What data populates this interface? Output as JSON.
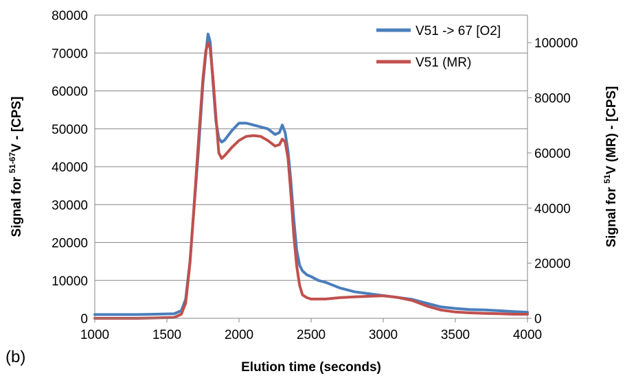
{
  "panel_label": "(b)",
  "chart_data": {
    "type": "line",
    "xlabel": "Elution time (seconds)",
    "ylabel_left": {
      "prefix": "Signal for ",
      "sup": "51-67",
      "suffix": "V - [CPS]"
    },
    "ylabel_right": {
      "prefix": "Signal for ",
      "sup": "51",
      "suffix": "V (MR) - [CPS]"
    },
    "xlim": [
      1000,
      4000
    ],
    "ylim_left": [
      0,
      80000
    ],
    "ylim_right": [
      0,
      110000
    ],
    "x_ticks": [
      "1000",
      "1500",
      "2000",
      "2500",
      "3000",
      "3500",
      "4000"
    ],
    "y_ticks_left": [
      "0",
      "10000",
      "20000",
      "30000",
      "40000",
      "50000",
      "60000",
      "70000",
      "80000"
    ],
    "y_ticks_right": [
      "0",
      "20000",
      "40000",
      "60000",
      "80000",
      "100000"
    ],
    "grid": "horizontal-left",
    "legend_position": "top-right",
    "series": [
      {
        "name": "V51 -> 67 [O2]",
        "axis": "left",
        "color": "#4a7ebb",
        "x": [
          1000,
          1300,
          1550,
          1600,
          1630,
          1660,
          1690,
          1720,
          1750,
          1770,
          1785,
          1800,
          1820,
          1840,
          1860,
          1880,
          1900,
          1950,
          2000,
          2050,
          2100,
          2150,
          2200,
          2250,
          2280,
          2300,
          2320,
          2340,
          2360,
          2380,
          2400,
          2420,
          2440,
          2470,
          2500,
          2550,
          2600,
          2700,
          2800,
          2900,
          3000,
          3100,
          3200,
          3300,
          3400,
          3500,
          3600,
          3700,
          3800,
          3900,
          4000
        ],
        "y": [
          1000,
          1000,
          1200,
          2000,
          5000,
          15000,
          30000,
          45000,
          62000,
          70000,
          75000,
          73000,
          62000,
          52000,
          47500,
          46500,
          47000,
          49500,
          51500,
          51500,
          51000,
          50500,
          50000,
          48500,
          49000,
          51000,
          49000,
          44000,
          36000,
          26000,
          18000,
          14000,
          12500,
          11500,
          11000,
          10000,
          9500,
          8000,
          7000,
          6500,
          6000,
          5500,
          5000,
          4000,
          3000,
          2600,
          2300,
          2200,
          2000,
          1800,
          1600
        ]
      },
      {
        "name": "V51 (MR)",
        "axis": "right",
        "color": "#c0504d",
        "x": [
          1000,
          1300,
          1550,
          1600,
          1630,
          1660,
          1690,
          1720,
          1750,
          1770,
          1785,
          1800,
          1820,
          1840,
          1860,
          1880,
          1900,
          1950,
          2000,
          2050,
          2100,
          2150,
          2200,
          2250,
          2280,
          2300,
          2320,
          2340,
          2360,
          2380,
          2400,
          2420,
          2440,
          2470,
          2500,
          2550,
          2600,
          2700,
          2800,
          2900,
          3000,
          3100,
          3200,
          3300,
          3400,
          3500,
          3600,
          3700,
          3800,
          3900,
          4000
        ],
        "y": [
          0,
          0,
          300,
          1500,
          5500,
          20000,
          42000,
          65000,
          87000,
          97000,
          100000,
          98000,
          87000,
          73000,
          60000,
          58000,
          59000,
          62000,
          64500,
          66000,
          66300,
          66000,
          64500,
          62500,
          63000,
          65000,
          64000,
          58000,
          45000,
          30000,
          19000,
          12000,
          8500,
          7500,
          7000,
          7000,
          7000,
          7500,
          7800,
          8000,
          8200,
          7600,
          6500,
          4500,
          3000,
          2300,
          2000,
          1800,
          1700,
          1500,
          1500
        ]
      }
    ]
  }
}
